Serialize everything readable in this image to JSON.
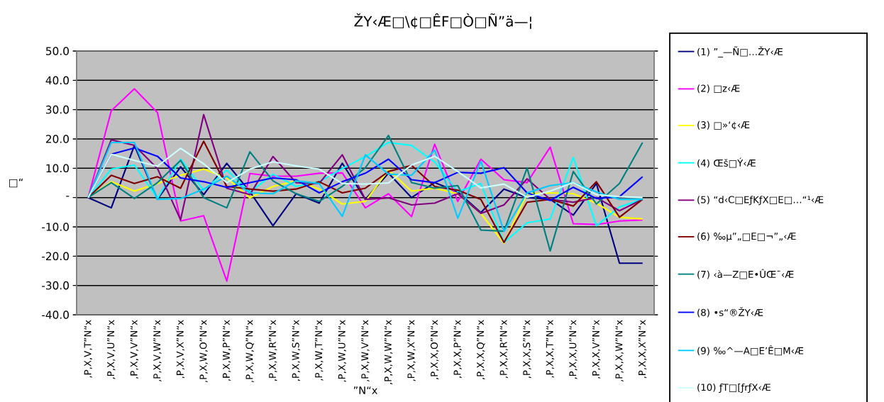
{
  "chart_data": {
    "type": "line",
    "title": "ŽY‹Æ□\\¢□ÊF□Ò□Ñ”ä—¦",
    "xlabel": "”N“x",
    "ylabel": "□“",
    "categories": [
      "‚P‚X‚V‚T”N“x",
      "‚P‚X‚V‚U”N“x",
      "‚P‚X‚V‚V”N“x",
      "‚P‚X‚V‚W”N“x",
      "‚P‚X‚V‚X”N“x",
      "‚P‚X‚W‚O”N“x",
      "‚P‚X‚W‚P”N“x",
      "‚P‚X‚W‚Q”N“x",
      "‚P‚X‚W‚R”N“x",
      "‚P‚X‚W‚S”N“x",
      "‚P‚X‚W‚T”N“x",
      "‚P‚X‚W‚U”N“x",
      "‚P‚X‚W‚V”N“x",
      "‚P‚X‚W‚W”N“x",
      "‚P‚X‚W‚X”N“x",
      "‚P‚X‚X‚O”N“x",
      "‚P‚X‚X‚P”N“x",
      "‚P‚X‚X‚Q”N“x",
      "‚P‚X‚X‚R”N“x",
      "‚P‚X‚X‚S”N“x",
      "‚P‚X‚X‚T”N“x",
      "‚P‚X‚X‚U”N“x",
      "‚P‚X‚X‚V”N“x",
      "‚P‚X‚X‚W”N“x",
      "‚P‚X‚X‚X”N“x"
    ],
    "series": [
      {
        "name": "(1) ”_—Ñ□…ŽY‹Æ",
        "color": "#000080",
        "values": [
          0,
          -3.5,
          17.8,
          -0.6,
          10.5,
          1.0,
          11.7,
          2.0,
          -9.6,
          1.3,
          -1.9,
          11.7,
          -0.6,
          8.3,
          0,
          5.1,
          1.9,
          -5.1,
          2.9,
          0,
          -0.6,
          -6.0,
          4.8,
          -22.4,
          -22.4
        ]
      },
      {
        "name": "(2) □z‹Æ",
        "color": "#FF00FF",
        "values": [
          0,
          29.6,
          37.1,
          29.0,
          -8.0,
          -6.2,
          -28.5,
          8.2,
          7.3,
          7.3,
          8.3,
          8.4,
          -3.5,
          1.3,
          -6.5,
          18.2,
          -1.3,
          13.1,
          6.1,
          5.1,
          17.2,
          -8.9,
          -9.2,
          -8.0,
          -7.6
        ]
      },
      {
        "name": "(3) □»‘¢‹Æ",
        "color": "#FFFF00",
        "values": [
          0,
          5.4,
          2.2,
          4.8,
          7.6,
          9.7,
          6.7,
          -0.1,
          3.8,
          5.7,
          2.9,
          -2.2,
          -1.3,
          9.4,
          2.2,
          3.2,
          1.3,
          -5.4,
          -15.6,
          1.3,
          1.6,
          1.3,
          -1.9,
          -6.7,
          -7.3
        ]
      },
      {
        "name": "(4) Œš□Ý‹Æ",
        "color": "#00FFFF",
        "values": [
          0,
          9.7,
          11.1,
          -0.3,
          13.1,
          2.5,
          9.4,
          1.9,
          8.0,
          3.8,
          5.4,
          9.9,
          14.0,
          18.8,
          17.8,
          12.1,
          2.0,
          4.8,
          -15.3,
          -8.6,
          -7.3,
          13.7,
          -9.6,
          -3.2,
          -0.6
        ]
      },
      {
        "name": "(5) “d‹C□EƒKƒX□E□…“¹‹Æ",
        "color": "#800080",
        "values": [
          0,
          19.7,
          17.8,
          9.9,
          -7.6,
          28.3,
          3.2,
          1.0,
          14.0,
          5.1,
          4.8,
          14.6,
          -0.6,
          -0.1,
          -2.5,
          -1.9,
          1.3,
          -5.4,
          -2.5,
          6.4,
          -0.6,
          -1.6,
          0,
          -4.5,
          -0.6
        ]
      },
      {
        "name": "(6) ‰µ”„□E□¬”„‹Æ",
        "color": "#800000",
        "values": [
          0,
          7.6,
          4.8,
          7.1,
          3.2,
          19.2,
          3.8,
          2.9,
          2.2,
          2.9,
          5.4,
          1.6,
          3.2,
          8.9,
          11.0,
          3.8,
          2.5,
          -0.6,
          -15.3,
          -1.6,
          -0.6,
          -2.9,
          5.4,
          -6.7,
          -0.6
        ]
      },
      {
        "name": "(7) ‹à—Z□E•ÛŒ¯‹Æ",
        "color": "#008080",
        "values": [
          0,
          5.1,
          -0.3,
          5.1,
          12.7,
          0,
          -3.5,
          15.6,
          5.7,
          1.3,
          -1.3,
          3.8,
          10.2,
          21.2,
          5.1,
          3.2,
          4.1,
          -11.1,
          -11.5,
          10.1,
          -18.2,
          8.9,
          -2.2,
          4.8,
          18.8
        ]
      },
      {
        "name": "(8) •s“®ŽY‹Æ",
        "color": "#0000FF",
        "values": [
          0,
          14.8,
          16.9,
          14.1,
          6.7,
          5.4,
          3.5,
          5.1,
          6.7,
          6.1,
          1.6,
          5.4,
          8.3,
          13.1,
          6.1,
          5.1,
          8.6,
          8.3,
          10.2,
          1.6,
          -1.0,
          3.5,
          -0.3,
          0.3,
          7.1
        ]
      },
      {
        "name": "(9) ‰^—A□E’Ê□M‹Æ",
        "color": "#00CCFF",
        "values": [
          0,
          18.8,
          18.8,
          -0.6,
          -0.3,
          2.9,
          7.3,
          1.6,
          1.3,
          5.7,
          4.8,
          -6.4,
          14.6,
          8.0,
          7.6,
          16.2,
          -7.0,
          12.4,
          -11.5,
          1.6,
          4.1,
          5.1,
          1.9,
          -0.6,
          -0.6
        ]
      },
      {
        "name": "(10) ƒT□[ƒrƒX‹Æ",
        "color": "#CCFFFF",
        "values": [
          0,
          14.8,
          12.7,
          10.7,
          16.8,
          11.5,
          5.1,
          9.7,
          12.2,
          10.8,
          9.7,
          4.8,
          4.6,
          5.0,
          11.1,
          14.1,
          8.9,
          3.3,
          4.6,
          0.1,
          2.2,
          5.1,
          1.0,
          0.3,
          0
        ]
      }
    ],
    "ylim": [
      -40,
      50
    ],
    "yticks": [
      {
        "value": 50,
        "label": "50.0"
      },
      {
        "value": 40,
        "label": "40.0"
      },
      {
        "value": 30,
        "label": "30.0"
      },
      {
        "value": 20,
        "label": "20.0"
      },
      {
        "value": 10,
        "label": "10.0"
      },
      {
        "value": 0,
        "label": "-"
      },
      {
        "value": -10,
        "label": "-10.0"
      },
      {
        "value": -20,
        "label": "-20.0"
      },
      {
        "value": -30,
        "label": "-30.0"
      },
      {
        "value": -40,
        "label": "-40.0"
      }
    ],
    "grid": "y",
    "legend": "right"
  }
}
